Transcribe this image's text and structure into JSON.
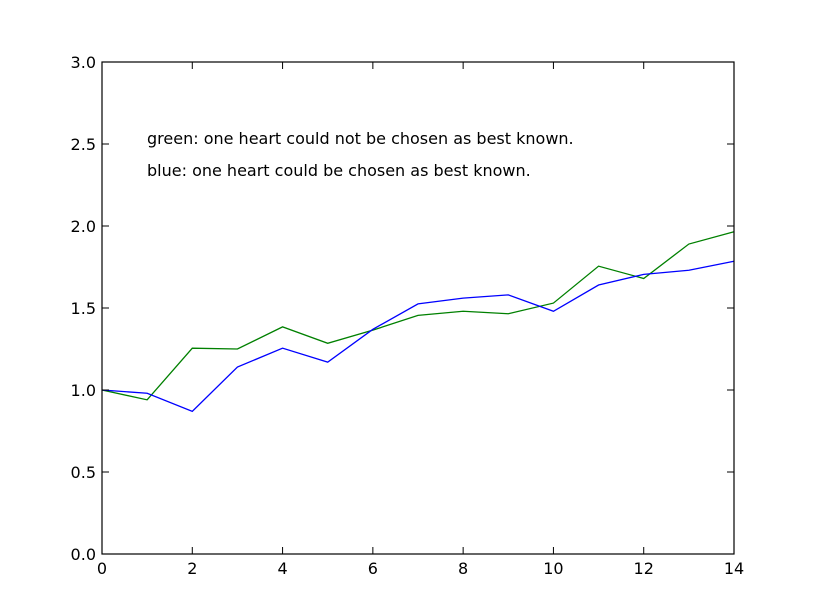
{
  "chart_data": {
    "type": "line",
    "x": [
      0,
      1,
      2,
      3,
      4,
      5,
      6,
      7,
      8,
      9,
      10,
      11,
      12,
      13,
      14
    ],
    "series": [
      {
        "color": "#008000",
        "values": [
          1.0,
          0.94,
          1.255,
          1.25,
          1.385,
          1.285,
          1.365,
          1.455,
          1.48,
          1.465,
          1.53,
          1.755,
          1.68,
          1.89,
          1.965
        ]
      },
      {
        "color": "#0000ff",
        "values": [
          1.0,
          0.98,
          0.87,
          1.14,
          1.255,
          1.17,
          1.37,
          1.525,
          1.56,
          1.58,
          1.48,
          1.64,
          1.705,
          1.73,
          1.785
        ]
      }
    ],
    "xlim": [
      0,
      14
    ],
    "ylim": [
      0.0,
      3.0
    ],
    "xticks": [
      "0",
      "2",
      "4",
      "6",
      "8",
      "10",
      "12",
      "14"
    ],
    "yticks": [
      "0.0",
      "0.5",
      "1.0",
      "1.5",
      "2.0",
      "2.5",
      "3.0"
    ],
    "annotations": [
      "green: one heart could not be chosen as best known.",
      "blue: one heart could be chosen as best known."
    ],
    "grid": false,
    "title": "",
    "xlabel": "",
    "ylabel": ""
  }
}
